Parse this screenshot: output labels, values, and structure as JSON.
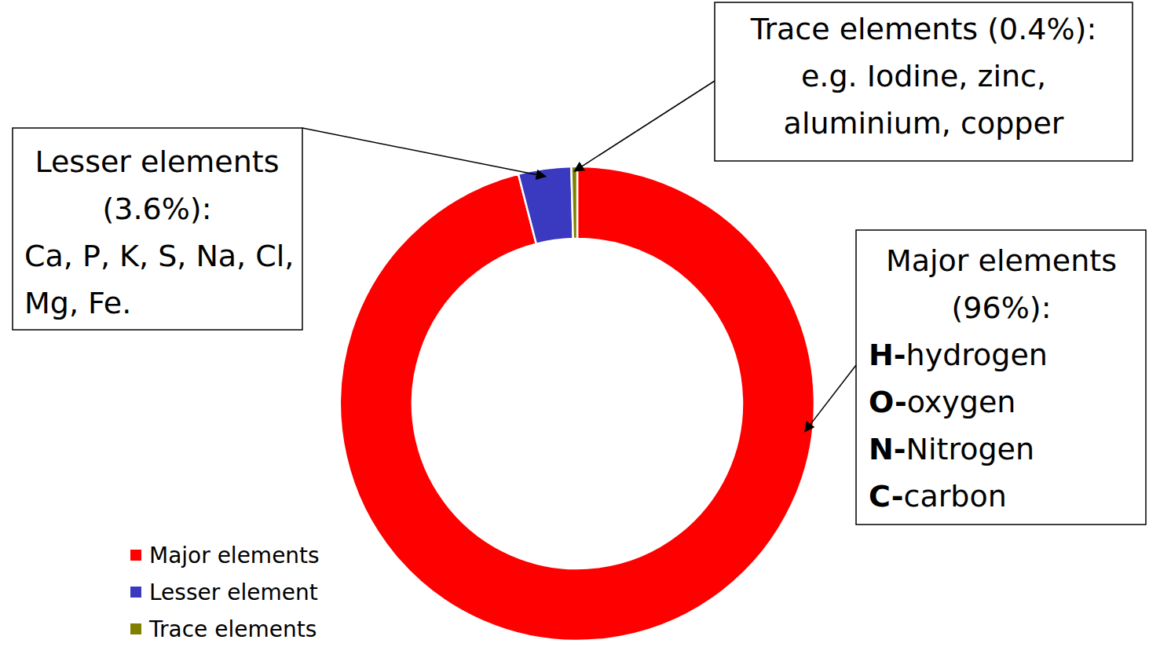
{
  "chart_data": {
    "type": "donut",
    "categories": [
      "Major elements",
      "Lesser element",
      "Trace elements"
    ],
    "values": [
      96,
      3.6,
      0.4
    ],
    "colors": [
      "#ff0000",
      "#3a3ac0",
      "#808000"
    ],
    "legend": "bottom-left",
    "annotations": [
      {
        "lines": [
          "Major elements",
          "(96%):"
        ],
        "items": [
          {
            "symbol": "H-",
            "name": "hydrogen"
          },
          {
            "symbol": "O-",
            "name": "oxygen"
          },
          {
            "symbol": "N-",
            "name": "Nitrogen"
          },
          {
            "symbol": "C-",
            "name": "carbon"
          }
        ]
      },
      {
        "lines": [
          "Lesser elements",
          "(3.6%):"
        ],
        "items": [
          "Ca, P, K, S, Na, Cl,",
          "Mg, Fe."
        ]
      },
      {
        "lines": [
          "Trace elements (0.4%):",
          "e.g. Iodine, zinc,",
          "aluminium, copper"
        ]
      }
    ]
  }
}
